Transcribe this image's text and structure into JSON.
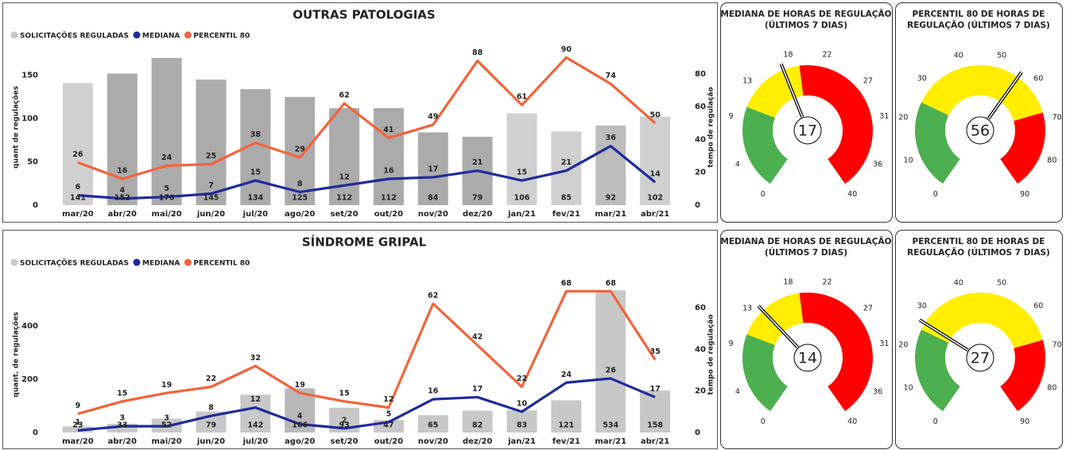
{
  "chart_data": [
    {
      "type": "combo",
      "title": "OUTRAS PATOLOGIAS",
      "y_label": "quant de regulações",
      "y2_label": "tempo de regulação",
      "categories": [
        "mar/20",
        "abr/20",
        "mai/20",
        "jun/20",
        "jul/20",
        "ago/20",
        "set/20",
        "out/20",
        "nov/20",
        "dez/20",
        "jan/21",
        "fev/21",
        "mar/21",
        "abr/21"
      ],
      "series": [
        {
          "name": "SOLICITAÇÕES REGULADAS",
          "type": "bar",
          "color": "#c8c8c8",
          "colors": [
            "#d0d0d0",
            "#ababab",
            "#ababab",
            "#ababab",
            "#ababab",
            "#ababab",
            "#ababab",
            "#ababab",
            "#ababab",
            "#ababab",
            "#d0d0d0",
            "#d0d0d0",
            "#bdbdbd",
            "#d0d0d0"
          ],
          "values": [
            141,
            152,
            170,
            145,
            134,
            125,
            112,
            112,
            84,
            79,
            106,
            85,
            92,
            102
          ]
        },
        {
          "name": "MEDIANA",
          "type": "line",
          "axis": "y2",
          "color": "#1f2a9b",
          "values": [
            6,
            4,
            5,
            7,
            15,
            8,
            12,
            16,
            17,
            21,
            15,
            21,
            36,
            14
          ]
        },
        {
          "name": "PERCENTIL 80",
          "type": "line",
          "axis": "y2",
          "color": "#f4623a",
          "values": [
            26,
            16,
            24,
            25,
            38,
            29,
            62,
            41,
            49,
            88,
            61,
            90,
            74,
            50
          ]
        }
      ],
      "ylim": [
        0,
        180
      ],
      "yticks": [
        0,
        50,
        100,
        150
      ],
      "y2lim": [
        0,
        95
      ],
      "y2ticks": [
        0,
        20,
        40,
        60,
        80
      ]
    },
    {
      "type": "gauge",
      "title": [
        "MEDIANA DE HORAS DE REGULAÇÃO",
        "(ÚLTIMOS 7 DIAS)"
      ],
      "value": 17,
      "lim": [
        0,
        40
      ],
      "ticks": [
        0,
        4,
        9,
        13,
        18,
        22,
        27,
        31,
        36,
        40
      ],
      "bands": [
        {
          "from": 0,
          "to": 10.5,
          "color": "#4caf50"
        },
        {
          "from": 10.5,
          "to": 19,
          "color": "#ffee00"
        },
        {
          "from": 19,
          "to": 40,
          "color": "#ff0000"
        }
      ]
    },
    {
      "type": "gauge",
      "title": [
        "PERCENTIL 80 DE HORAS DE",
        "REGULAÇÃO (ÚLTIMOS 7 DIAS)"
      ],
      "value": 56,
      "lim": [
        0,
        90
      ],
      "ticks": [
        0,
        10,
        20,
        30,
        40,
        50,
        60,
        70,
        80,
        90
      ],
      "bands": [
        {
          "from": 0,
          "to": 25,
          "color": "#4caf50"
        },
        {
          "from": 25,
          "to": 68,
          "color": "#ffee00"
        },
        {
          "from": 68,
          "to": 90,
          "color": "#ff0000"
        }
      ]
    },
    {
      "type": "combo",
      "title": "SÍNDROME GRIPAL",
      "y_label": "quant. de regulações",
      "y2_label": "tempo de regulação",
      "categories": [
        "mar/20",
        "abr/20",
        "mai/20",
        "jun/20",
        "jul/20",
        "ago/20",
        "set/20",
        "out/20",
        "nov/20",
        "dez/20",
        "jan/21",
        "fev/21",
        "mar/21",
        "abr/21"
      ],
      "series": [
        {
          "name": "SOLICITAÇÕES REGULADAS",
          "type": "bar",
          "color": "#c8c8c8",
          "colors": [
            "#c8c8c8",
            "#c8c8c8",
            "#c8c8c8",
            "#c8c8c8",
            "#c8c8c8",
            "#b8b8b8",
            "#c8c8c8",
            "#c8c8c8",
            "#c8c8c8",
            "#c8c8c8",
            "#c8c8c8",
            "#c8c8c8",
            "#c8c8c8",
            "#c8c8c8"
          ],
          "values": [
            23,
            33,
            52,
            79,
            142,
            166,
            93,
            47,
            65,
            82,
            83,
            121,
            534,
            158
          ]
        },
        {
          "name": "MEDIANA",
          "type": "line",
          "axis": "y2",
          "color": "#1f2a9b",
          "values": [
            1,
            3,
            3,
            8,
            12,
            4,
            2,
            5,
            16,
            17,
            10,
            24,
            26,
            17
          ]
        },
        {
          "name": "PERCENTIL 80",
          "type": "line",
          "axis": "y2",
          "color": "#f4623a",
          "values": [
            9,
            15,
            19,
            22,
            32,
            19,
            15,
            12,
            62,
            42,
            22,
            68,
            68,
            35
          ]
        }
      ],
      "ylim": [
        0,
        585
      ],
      "yticks": [
        0,
        200,
        400
      ],
      "y2lim": [
        0,
        75
      ],
      "y2ticks": [
        0,
        20,
        40,
        60
      ]
    },
    {
      "type": "gauge",
      "title": [
        "MEDIANA DE HORAS DE REGULAÇÃO",
        "(ÚLTIMOS 7 DIAS)"
      ],
      "value": 14,
      "lim": [
        0,
        40
      ],
      "ticks": [
        0,
        4,
        9,
        13,
        18,
        22,
        27,
        31,
        36,
        40
      ],
      "bands": [
        {
          "from": 0,
          "to": 10.5,
          "color": "#4caf50"
        },
        {
          "from": 10.5,
          "to": 19,
          "color": "#ffee00"
        },
        {
          "from": 19,
          "to": 40,
          "color": "#ff0000"
        }
      ]
    },
    {
      "type": "gauge",
      "title": [
        "PERCENTIL 80 DE HORAS DE",
        "REGULAÇÃO (ÚLTIMOS 7 DIAS)"
      ],
      "value": 27,
      "lim": [
        0,
        90
      ],
      "ticks": [
        0,
        10,
        20,
        30,
        40,
        50,
        60,
        70,
        80,
        90
      ],
      "bands": [
        {
          "from": 0,
          "to": 25,
          "color": "#4caf50"
        },
        {
          "from": 25,
          "to": 68,
          "color": "#ffee00"
        },
        {
          "from": 68,
          "to": 90,
          "color": "#ff0000"
        }
      ]
    }
  ]
}
